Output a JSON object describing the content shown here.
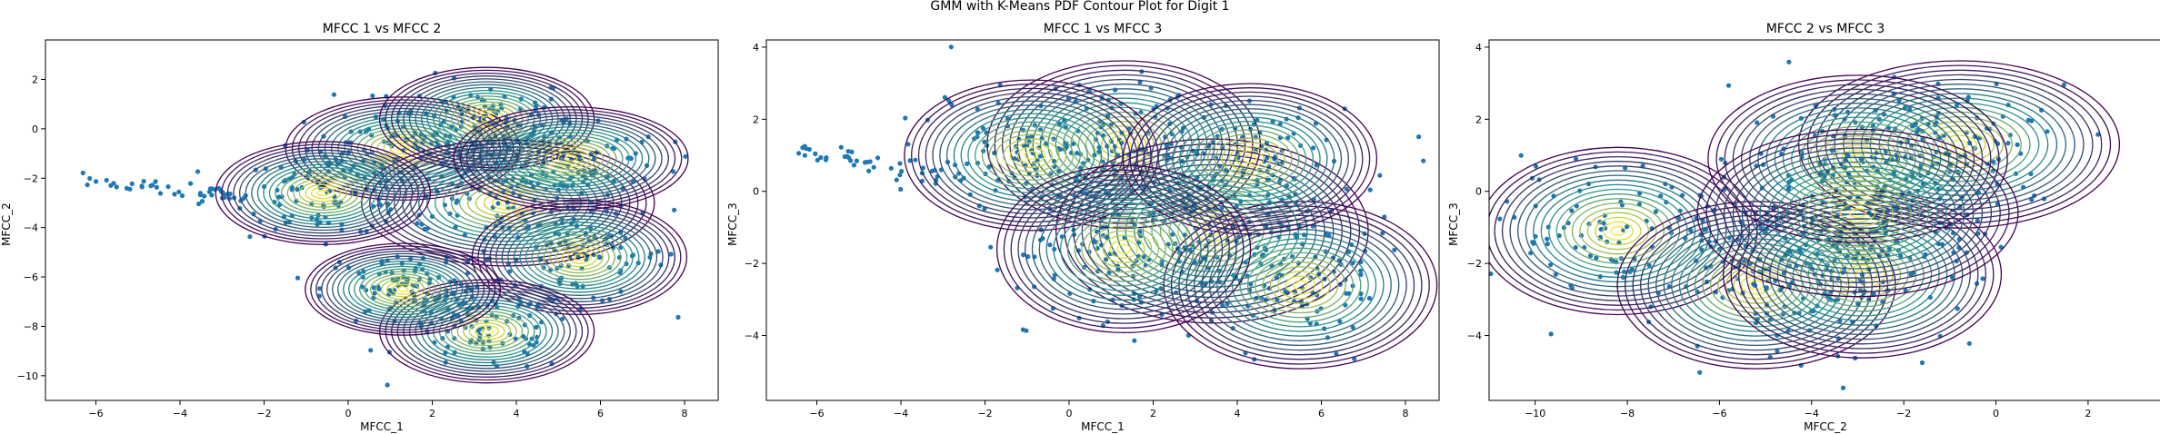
{
  "figure": {
    "suptitle": "GMM with K-Means PDF Contour Plot for Digit 1"
  },
  "colors": {
    "scatter": "#1f77b4",
    "contour_low": "#440154",
    "contour_mid": "#21908d",
    "contour_high": "#fde725",
    "axes": "#000000"
  },
  "chart_data": [
    {
      "type": "scatter",
      "title": "MFCC 1 vs MFCC 2",
      "xlabel": "MFCC_1",
      "ylabel": "MFCC_2",
      "xlim": [
        -7.2,
        8.8
      ],
      "ylim": [
        -11.0,
        3.6
      ],
      "xticks": [
        -6,
        -4,
        -2,
        0,
        2,
        4,
        6,
        8
      ],
      "yticks": [
        -10,
        -8,
        -6,
        -4,
        -2,
        0,
        2
      ],
      "overlay": "gmm_pdf_contours",
      "components": [
        {
          "mean": [
            1.3,
            -0.8
          ],
          "spread": [
            1.2,
            0.9
          ]
        },
        {
          "mean": [
            3.3,
            0.4
          ],
          "spread": [
            1.1,
            0.9
          ]
        },
        {
          "mean": [
            3.8,
            -3.0
          ],
          "spread": [
            1.5,
            1.1
          ]
        },
        {
          "mean": [
            5.5,
            -5.2
          ],
          "spread": [
            1.1,
            1.0
          ]
        },
        {
          "mean": [
            3.3,
            -8.2
          ],
          "spread": [
            1.1,
            0.9
          ]
        },
        {
          "mean": [
            -0.6,
            -2.6
          ],
          "spread": [
            1.1,
            0.9
          ]
        },
        {
          "mean": [
            1.3,
            -6.5
          ],
          "spread": [
            1.0,
            0.8
          ]
        },
        {
          "mean": [
            5.3,
            -1.2
          ],
          "spread": [
            1.2,
            0.9
          ]
        }
      ],
      "tail": {
        "from": [
          -6.5,
          -2.1
        ],
        "to": [
          -2.5,
          -2.8
        ]
      }
    },
    {
      "type": "scatter",
      "title": "MFCC 1 vs MFCC 3",
      "xlabel": "MFCC_1",
      "ylabel": "MFCC_3",
      "xlim": [
        -7.2,
        8.8
      ],
      "ylim": [
        -5.8,
        4.2
      ],
      "xticks": [
        -6,
        -4,
        -2,
        0,
        2,
        4,
        6,
        8
      ],
      "yticks": [
        -4,
        -2,
        0,
        2,
        4
      ],
      "overlay": "gmm_pdf_contours",
      "components": [
        {
          "mean": [
            1.3,
            1.3
          ],
          "spread": [
            1.4,
            1.0
          ]
        },
        {
          "mean": [
            -0.9,
            1.0
          ],
          "spread": [
            1.3,
            0.9
          ]
        },
        {
          "mean": [
            3.4,
            -1.1
          ],
          "spread": [
            1.6,
            1.1
          ]
        },
        {
          "mean": [
            5.5,
            -2.6
          ],
          "spread": [
            1.4,
            1.0
          ]
        },
        {
          "mean": [
            4.3,
            0.9
          ],
          "spread": [
            1.3,
            0.9
          ]
        },
        {
          "mean": [
            1.3,
            -1.6
          ],
          "spread": [
            1.3,
            1.0
          ]
        }
      ],
      "tail": {
        "from": [
          -6.4,
          1.1
        ],
        "to": [
          -2.5,
          0.3
        ]
      }
    },
    {
      "type": "scatter",
      "title": "MFCC 2 vs MFCC 3",
      "xlabel": "MFCC_2",
      "ylabel": "MFCC_3",
      "xlim": [
        -11.0,
        3.6
      ],
      "ylim": [
        -5.8,
        4.2
      ],
      "xticks": [
        -10,
        -8,
        -6,
        -4,
        -2,
        0,
        2
      ],
      "yticks": [
        -4,
        -2,
        0,
        2,
        4
      ],
      "overlay": "gmm_pdf_contours",
      "components": [
        {
          "mean": [
            -8.2,
            -1.1
          ],
          "spread": [
            1.3,
            1.0
          ]
        },
        {
          "mean": [
            -5.2,
            -2.6
          ],
          "spread": [
            1.3,
            1.0
          ]
        },
        {
          "mean": [
            -2.9,
            -2.3
          ],
          "spread": [
            1.3,
            1.0
          ]
        },
        {
          "mean": [
            -0.8,
            1.3
          ],
          "spread": [
            1.5,
            1.0
          ]
        },
        {
          "mean": [
            -3.0,
            0.9
          ],
          "spread": [
            1.4,
            1.0
          ]
        },
        {
          "mean": [
            -3.0,
            -0.6
          ],
          "spread": [
            1.5,
            1.0
          ]
        }
      ]
    }
  ]
}
